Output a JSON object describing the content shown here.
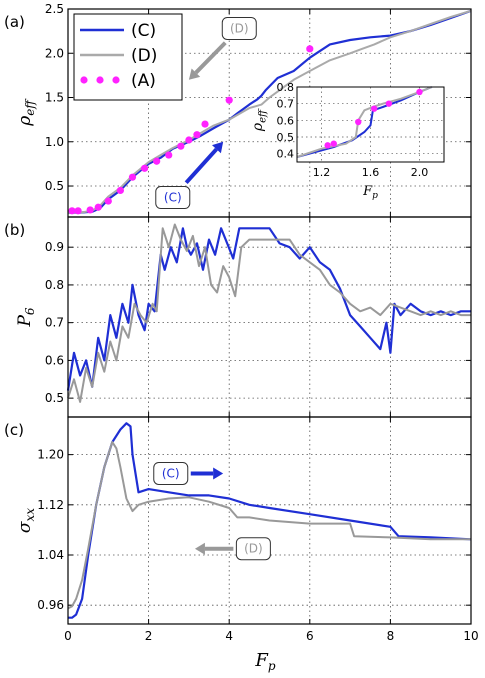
{
  "chart_data": [
    {
      "type": "line",
      "panel_label": "(a)",
      "xlabel": "",
      "ylabel": "ρ",
      "ylabel_sub": "eff",
      "xlim": [
        0,
        10
      ],
      "ylim": [
        0.15,
        2.5
      ],
      "yticks": [
        0.5,
        1.0,
        1.5,
        2.0,
        2.5
      ],
      "ytick_labels": [
        "0.5",
        "1.0",
        "1.5",
        "2.0",
        "2.5"
      ],
      "grid": true,
      "legend": {
        "placement": "top-left",
        "entries": [
          "(C)",
          "(D)",
          "(A)"
        ]
      },
      "series": [
        {
          "name": "(C)",
          "color": "#1f2fd4",
          "x": [
            0,
            0.3,
            0.6,
            0.8,
            1.0,
            1.3,
            1.6,
            2.0,
            2.3,
            2.6,
            3.0,
            3.3,
            3.6,
            4.0,
            4.2,
            4.5,
            4.7,
            4.8,
            4.9,
            5.2,
            5.6,
            6.0,
            6.5,
            7.0,
            7.5,
            8.0,
            8.5,
            9.0,
            9.5,
            10.0
          ],
          "y": [
            0.2,
            0.2,
            0.21,
            0.25,
            0.35,
            0.45,
            0.6,
            0.75,
            0.82,
            0.92,
            1.0,
            1.07,
            1.15,
            1.25,
            1.32,
            1.42,
            1.48,
            1.52,
            1.58,
            1.72,
            1.8,
            1.95,
            2.1,
            2.15,
            2.18,
            2.2,
            2.25,
            2.32,
            2.4,
            2.48
          ]
        },
        {
          "name": "(D)",
          "color": "#aaaaaa",
          "x": [
            0,
            0.3,
            0.6,
            0.8,
            1.0,
            1.3,
            1.6,
            2.0,
            2.3,
            2.6,
            3.0,
            3.3,
            3.6,
            4.0,
            4.5,
            4.8,
            5.0,
            5.3,
            5.6,
            6.0,
            6.5,
            7.0,
            7.3,
            7.6,
            8.0,
            8.5,
            9.0,
            9.5,
            10.0
          ],
          "y": [
            0.2,
            0.2,
            0.22,
            0.28,
            0.38,
            0.48,
            0.62,
            0.77,
            0.85,
            0.93,
            1.02,
            1.1,
            1.18,
            1.25,
            1.38,
            1.42,
            1.5,
            1.6,
            1.7,
            1.8,
            1.92,
            2.0,
            2.05,
            2.1,
            2.18,
            2.25,
            2.33,
            2.41,
            2.48
          ]
        },
        {
          "name": "(A)",
          "color": "#ff22ff",
          "x": [
            0.1,
            0.25,
            0.55,
            0.75,
            1.0,
            1.3,
            1.6,
            1.9,
            2.2,
            2.5,
            2.8,
            3.0,
            3.2,
            3.4,
            4.0,
            6.0
          ],
          "y": [
            0.22,
            0.22,
            0.23,
            0.26,
            0.33,
            0.45,
            0.6,
            0.7,
            0.78,
            0.85,
            0.95,
            1.02,
            1.08,
            1.2,
            1.47,
            2.05
          ]
        }
      ],
      "annotations": [
        {
          "text": "(D)",
          "color": "#999999",
          "at": [
            4.25,
            2.28
          ],
          "arrow_to": [
            3.0,
            1.7
          ]
        },
        {
          "text": "(C)",
          "color": "#1f2fd4",
          "at": [
            2.6,
            0.37
          ],
          "arrow_to": [
            3.85,
            1.0
          ]
        }
      ],
      "inset": {
        "xlabel": "F",
        "xlabel_sub": "p",
        "ylabel": "ρ",
        "ylabel_sub": "eff",
        "xlim": [
          1.0,
          2.2
        ],
        "ylim": [
          0.35,
          0.8
        ],
        "xticks": [
          1.2,
          1.6,
          2.0
        ],
        "xtick_labels": [
          "1.2",
          "1.6",
          "2.0"
        ],
        "yticks": [
          0.4,
          0.5,
          0.6,
          0.7,
          0.8
        ],
        "ytick_labels": [
          "0.4",
          "0.5",
          "0.6",
          "0.7",
          "0.8"
        ],
        "series": [
          {
            "name": "(C)",
            "color": "#1f2fd4",
            "x": [
              1.0,
              1.15,
              1.3,
              1.45,
              1.55,
              1.6,
              1.62,
              1.7,
              1.85,
              2.0,
              2.1
            ],
            "y": [
              0.38,
              0.41,
              0.44,
              0.48,
              0.53,
              0.57,
              0.66,
              0.68,
              0.72,
              0.77,
              0.8
            ]
          },
          {
            "name": "(D)",
            "color": "#aaaaaa",
            "x": [
              1.0,
              1.2,
              1.4,
              1.48,
              1.5,
              1.55,
              1.62,
              1.7,
              1.85,
              2.0,
              2.1
            ],
            "y": [
              0.38,
              0.43,
              0.46,
              0.5,
              0.6,
              0.66,
              0.68,
              0.7,
              0.73,
              0.77,
              0.8
            ]
          },
          {
            "name": "(A)",
            "color": "#ff22ff",
            "x": [
              1.25,
              1.3,
              1.5,
              1.63,
              1.75,
              2.0
            ],
            "y": [
              0.45,
              0.46,
              0.59,
              0.67,
              0.7,
              0.77
            ]
          }
        ]
      }
    },
    {
      "type": "line",
      "panel_label": "(b)",
      "xlabel": "",
      "ylabel": "P",
      "ylabel_sub": "6",
      "xlim": [
        0,
        10
      ],
      "ylim": [
        0.45,
        0.98
      ],
      "yticks": [
        0.5,
        0.6,
        0.7,
        0.8,
        0.9
      ],
      "ytick_labels": [
        "0.5",
        "0.6",
        "0.7",
        "0.8",
        "0.9"
      ],
      "grid": true,
      "series": [
        {
          "name": "(C)",
          "color": "#1f2fd4",
          "x": [
            0,
            0.15,
            0.3,
            0.45,
            0.6,
            0.75,
            0.9,
            1.05,
            1.2,
            1.35,
            1.5,
            1.6,
            1.75,
            1.9,
            2.0,
            2.15,
            2.3,
            2.4,
            2.55,
            2.7,
            2.85,
            2.95,
            3.05,
            3.2,
            3.35,
            3.5,
            3.65,
            3.8,
            3.95,
            4.1,
            4.25,
            4.5,
            4.75,
            5.0,
            5.25,
            5.5,
            5.75,
            6.0,
            6.25,
            6.5,
            6.75,
            7.0,
            7.25,
            7.5,
            7.75,
            7.9,
            8.0,
            8.1,
            8.25,
            8.5,
            8.75,
            9.0,
            9.25,
            9.5,
            9.75,
            10.0
          ],
          "y": [
            0.52,
            0.62,
            0.56,
            0.6,
            0.53,
            0.66,
            0.6,
            0.72,
            0.66,
            0.75,
            0.7,
            0.8,
            0.72,
            0.68,
            0.75,
            0.73,
            0.88,
            0.84,
            0.9,
            0.86,
            0.95,
            0.9,
            0.88,
            0.91,
            0.84,
            0.92,
            0.88,
            0.95,
            0.91,
            0.87,
            0.95,
            0.95,
            0.95,
            0.95,
            0.91,
            0.9,
            0.87,
            0.9,
            0.86,
            0.84,
            0.79,
            0.72,
            0.69,
            0.66,
            0.63,
            0.7,
            0.62,
            0.75,
            0.72,
            0.75,
            0.73,
            0.72,
            0.73,
            0.72,
            0.73,
            0.73
          ]
        },
        {
          "name": "(D)",
          "color": "#999999",
          "x": [
            0,
            0.15,
            0.3,
            0.45,
            0.6,
            0.75,
            0.9,
            1.05,
            1.2,
            1.35,
            1.5,
            1.65,
            1.8,
            1.95,
            2.1,
            2.2,
            2.35,
            2.5,
            2.65,
            2.8,
            2.95,
            3.1,
            3.25,
            3.4,
            3.55,
            3.7,
            3.85,
            4.0,
            4.15,
            4.3,
            4.5,
            4.75,
            5.0,
            5.25,
            5.5,
            5.75,
            6.0,
            6.25,
            6.5,
            6.75,
            7.0,
            7.25,
            7.5,
            7.75,
            8.0,
            8.25,
            8.5,
            8.75,
            9.0,
            9.25,
            9.5,
            9.75,
            10.0
          ],
          "y": [
            0.5,
            0.55,
            0.49,
            0.58,
            0.53,
            0.62,
            0.57,
            0.65,
            0.6,
            0.69,
            0.66,
            0.75,
            0.72,
            0.7,
            0.75,
            0.73,
            0.95,
            0.9,
            0.96,
            0.92,
            0.89,
            0.93,
            0.85,
            0.9,
            0.8,
            0.78,
            0.85,
            0.82,
            0.77,
            0.9,
            0.92,
            0.92,
            0.92,
            0.92,
            0.92,
            0.88,
            0.86,
            0.84,
            0.8,
            0.78,
            0.75,
            0.73,
            0.74,
            0.72,
            0.75,
            0.74,
            0.73,
            0.72,
            0.73,
            0.72,
            0.73,
            0.72,
            0.72
          ]
        }
      ]
    },
    {
      "type": "line",
      "panel_label": "(c)",
      "xlabel": "F",
      "xlabel_sub": "p",
      "ylabel": "σ",
      "ylabel_sub": "xx",
      "xlim": [
        0,
        10
      ],
      "xticks": [
        0,
        2,
        4,
        6,
        8,
        10
      ],
      "xtick_labels": [
        "0",
        "2",
        "4",
        "6",
        "8",
        "10"
      ],
      "ylim": [
        0.93,
        1.26
      ],
      "yticks": [
        0.96,
        1.04,
        1.12,
        1.2
      ],
      "ytick_labels": [
        "0.96",
        "1.04",
        "1.12",
        "1.20"
      ],
      "grid": true,
      "series": [
        {
          "name": "(C)",
          "color": "#1f2fd4",
          "x": [
            0,
            0.1,
            0.2,
            0.35,
            0.5,
            0.7,
            0.9,
            1.1,
            1.3,
            1.45,
            1.55,
            1.6,
            1.75,
            2.0,
            2.5,
            3.0,
            3.5,
            4.0,
            4.5,
            5.0,
            6.0,
            7.0,
            8.0,
            8.2,
            9.0,
            10.0
          ],
          "y": [
            0.94,
            0.94,
            0.945,
            0.97,
            1.04,
            1.12,
            1.18,
            1.22,
            1.24,
            1.25,
            1.245,
            1.2,
            1.14,
            1.145,
            1.14,
            1.135,
            1.135,
            1.13,
            1.12,
            1.115,
            1.105,
            1.095,
            1.085,
            1.07,
            1.068,
            1.065
          ]
        },
        {
          "name": "(D)",
          "color": "#999999",
          "x": [
            0,
            0.1,
            0.2,
            0.35,
            0.5,
            0.7,
            0.9,
            1.1,
            1.2,
            1.3,
            1.45,
            1.6,
            1.75,
            2.0,
            2.5,
            3.0,
            3.5,
            4.0,
            4.2,
            4.5,
            5.0,
            6.0,
            7.0,
            7.1,
            8.0,
            9.0,
            10.0
          ],
          "y": [
            0.955,
            0.958,
            0.97,
            1.0,
            1.05,
            1.12,
            1.18,
            1.22,
            1.21,
            1.18,
            1.13,
            1.11,
            1.12,
            1.125,
            1.13,
            1.132,
            1.125,
            1.115,
            1.1,
            1.1,
            1.095,
            1.09,
            1.09,
            1.07,
            1.068,
            1.065,
            1.065
          ]
        }
      ],
      "annotations": [
        {
          "text": "(C)",
          "color": "#1f2fd4",
          "at": [
            2.55,
            1.17
          ],
          "arrow_to": [
            3.85,
            1.17
          ]
        },
        {
          "text": "(D)",
          "color": "#999999",
          "at": [
            4.6,
            1.05
          ],
          "arrow_to": [
            3.15,
            1.05
          ]
        }
      ]
    }
  ]
}
